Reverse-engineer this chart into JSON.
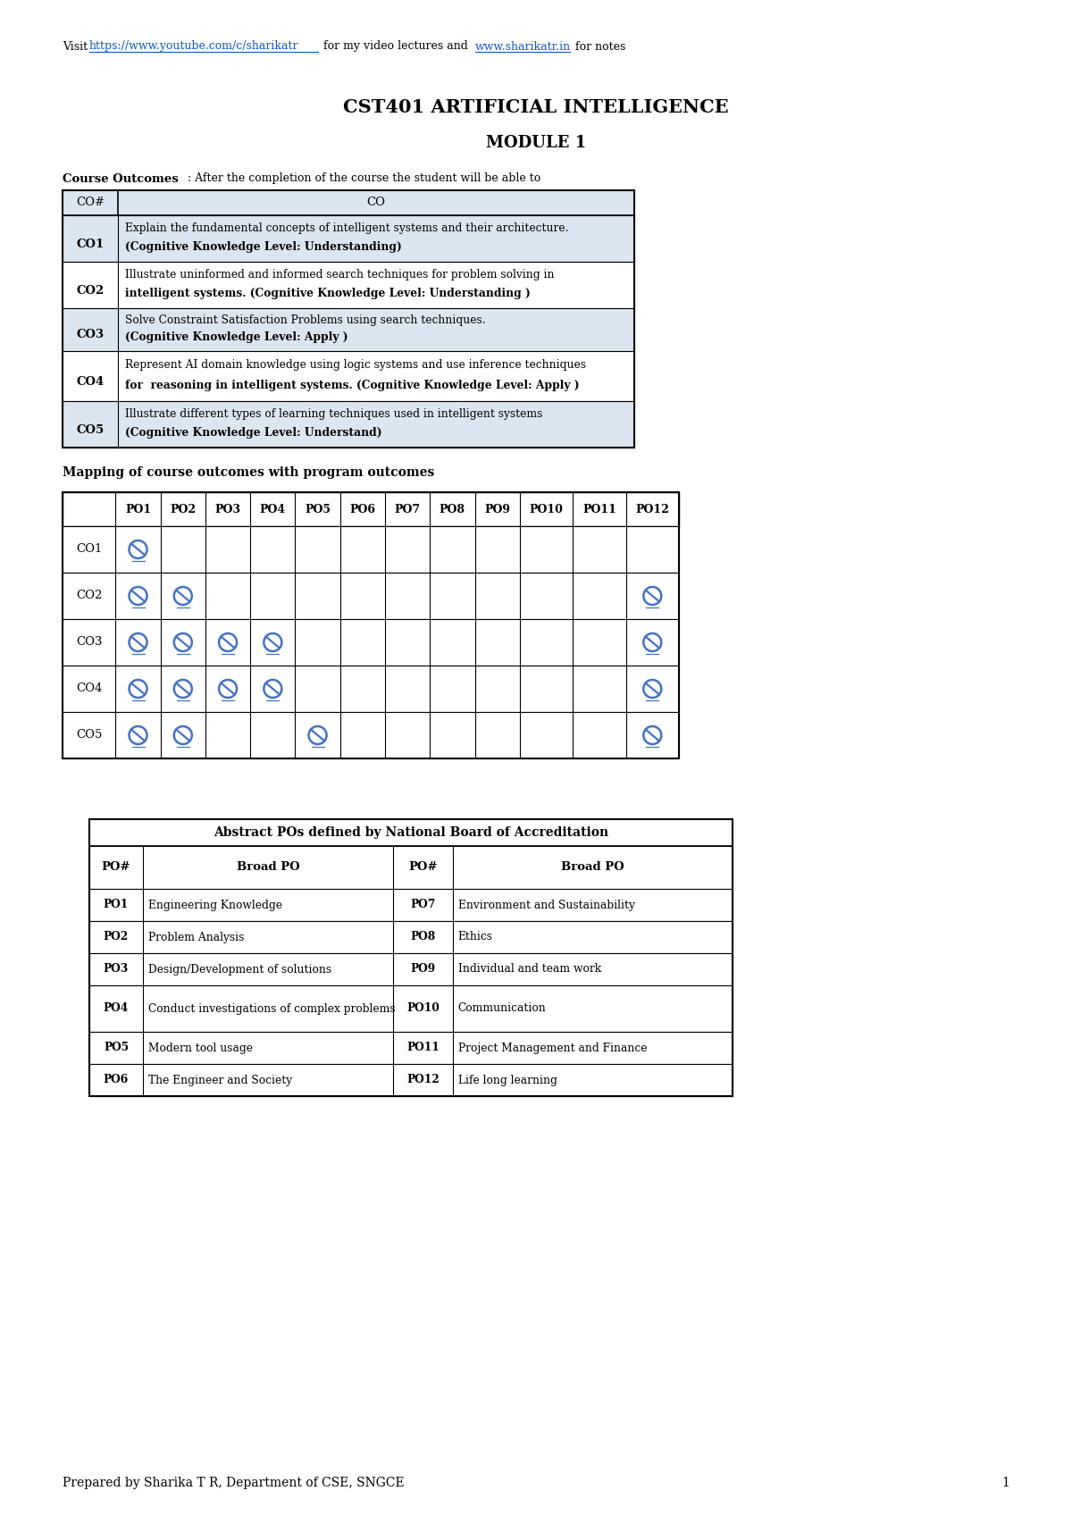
{
  "page_width": 12.0,
  "page_height": 16.97,
  "bg_color": "#ffffff",
  "main_title": "CST401 ARTIFICIAL INTELLIGENCE",
  "sub_title": "MODULE 1",
  "co_rows": [
    [
      "CO1",
      "Explain the fundamental concepts of intelligent systems and their architecture.",
      "(Cognitive Knowledge Level: Understanding)"
    ],
    [
      "CO2",
      "Illustrate uninformed and informed search techniques for problem solving in",
      "intelligent systems. (Cognitive Knowledge Level: Understanding )"
    ],
    [
      "CO3",
      "Solve Constraint Satisfaction Problems using search techniques.",
      "(Cognitive Knowledge Level: Apply )"
    ],
    [
      "CO4",
      "Represent AI domain knowledge using logic systems and use inference techniques",
      "for  reasoning in intelligent systems. (Cognitive Knowledge Level: Apply )"
    ],
    [
      "CO5",
      "Illustrate different types of learning techniques used in intelligent systems",
      "(Cognitive Knowledge Level: Understand)"
    ]
  ],
  "mapping_cols": [
    "",
    "PO1",
    "PO2",
    "PO3",
    "PO4",
    "PO5",
    "PO6",
    "PO7",
    "PO8",
    "PO9",
    "PO10",
    "PO11",
    "PO12"
  ],
  "mapping_rows": [
    {
      "name": "CO1",
      "marks": [
        1,
        0,
        0,
        0,
        0,
        0,
        0,
        0,
        0,
        0,
        0,
        0
      ]
    },
    {
      "name": "CO2",
      "marks": [
        1,
        1,
        0,
        0,
        0,
        0,
        0,
        0,
        0,
        0,
        0,
        1
      ]
    },
    {
      "name": "CO3",
      "marks": [
        1,
        1,
        1,
        1,
        0,
        0,
        0,
        0,
        0,
        0,
        0,
        1
      ]
    },
    {
      "name": "CO4",
      "marks": [
        1,
        1,
        1,
        1,
        0,
        0,
        0,
        0,
        0,
        0,
        0,
        1
      ]
    },
    {
      "name": "CO5",
      "marks": [
        1,
        1,
        0,
        0,
        1,
        0,
        0,
        0,
        0,
        0,
        0,
        1
      ]
    }
  ],
  "abstract_table_title": "Abstract POs defined by National Board of Accreditation",
  "abstract_rows": [
    [
      "PO1",
      "Engineering Knowledge",
      "PO7",
      "Environment and Sustainability"
    ],
    [
      "PO2",
      "Problem Analysis",
      "PO8",
      "Ethics"
    ],
    [
      "PO3",
      "Design/Development of solutions",
      "PO9",
      "Individual and team work"
    ],
    [
      "PO4",
      "Conduct investigations of complex problems",
      "PO10",
      "Communication"
    ],
    [
      "PO5",
      "Modern tool usage",
      "PO11",
      "Project Management and Finance"
    ],
    [
      "PO6",
      "The Engineer and Society",
      "PO12",
      "Life long learning"
    ]
  ],
  "footer_text": "Prepared by Sharika T R, Department of CSE, SNGCE",
  "footer_page": "1",
  "check_color": "#4472c4",
  "link_color": "#1155CC"
}
